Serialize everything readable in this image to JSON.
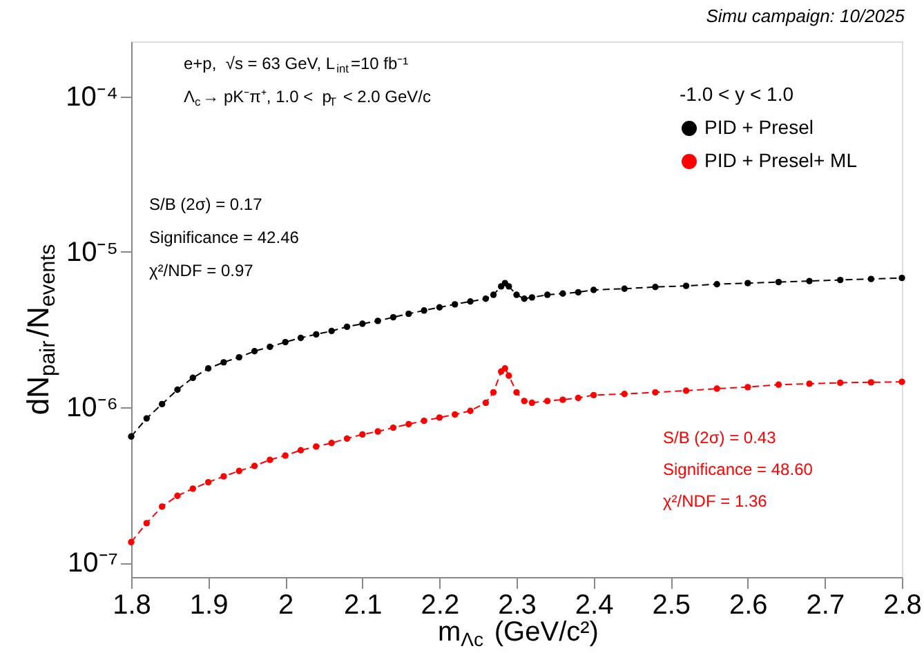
{
  "chart_data": {
    "type": "line",
    "xlabel": "m$_{Λc}$ (GeV/c²)",
    "ylabel": "dN$_{pair}$/N$_{events}$",
    "legend_title": "-1.0 < y < 1.0",
    "x": [
      1.8,
      1.82,
      1.84,
      1.86,
      1.88,
      1.9,
      1.92,
      1.94,
      1.96,
      1.98,
      2.0,
      2.02,
      2.04,
      2.06,
      2.08,
      2.1,
      2.12,
      2.14,
      2.16,
      2.18,
      2.2,
      2.22,
      2.24,
      2.26,
      2.27,
      2.28,
      2.285,
      2.29,
      2.3,
      2.31,
      2.32,
      2.34,
      2.36,
      2.38,
      2.4,
      2.44,
      2.48,
      2.52,
      2.56,
      2.6,
      2.64,
      2.68,
      2.72,
      2.76,
      2.8
    ],
    "series": [
      {
        "name": "PID + Presel",
        "color": "#000000",
        "values": [
          6.5e-07,
          8.5e-07,
          1.05e-06,
          1.3e-06,
          1.55e-06,
          1.78e-06,
          1.95e-06,
          2.1e-06,
          2.3e-06,
          2.45e-06,
          2.63e-06,
          2.8e-06,
          2.95e-06,
          3.1e-06,
          3.3e-06,
          3.45e-06,
          3.6e-06,
          3.8e-06,
          4e-06,
          4.2e-06,
          4.4e-06,
          4.6e-06,
          4.8e-06,
          5e-06,
          5.3e-06,
          6e-06,
          6.3e-06,
          6e-06,
          5.3e-06,
          5e-06,
          5.1e-06,
          5.3e-06,
          5.4e-06,
          5.5e-06,
          5.7e-06,
          5.8e-06,
          5.95e-06,
          6.05e-06,
          6.2e-06,
          6.3e-06,
          6.4e-06,
          6.5e-06,
          6.6e-06,
          6.7e-06,
          6.8e-06
        ]
      },
      {
        "name": "PID + Presel+ ML",
        "color": "#ff0000",
        "values": [
          1.36e-07,
          1.8e-07,
          2.3e-07,
          2.7e-07,
          3e-07,
          3.3e-07,
          3.6e-07,
          3.9e-07,
          4.2e-07,
          4.6e-07,
          4.9e-07,
          5.3e-07,
          5.6e-07,
          5.9e-07,
          6.3e-07,
          6.7e-07,
          7e-07,
          7.4e-07,
          7.8e-07,
          8.2e-07,
          8.6e-07,
          9e-07,
          9.5e-07,
          1.07e-06,
          1.25e-06,
          1.7e-06,
          1.78e-06,
          1.6e-06,
          1.25e-06,
          1.1e-06,
          1.07e-06,
          1.1e-06,
          1.12e-06,
          1.15e-06,
          1.2e-06,
          1.22e-06,
          1.25e-06,
          1.28e-06,
          1.32e-06,
          1.35e-06,
          1.4e-06,
          1.42e-06,
          1.44e-06,
          1.45e-06,
          1.46e-06
        ]
      }
    ],
    "xlim": [
      1.8,
      2.8
    ],
    "xticks": [
      1.8,
      1.9,
      2,
      2.1,
      2.2,
      2.3,
      2.4,
      2.5,
      2.6,
      2.7,
      2.8
    ],
    "ylim": [
      8.1e-08,
      0.000226
    ],
    "log": true,
    "yticks": [
      {
        "value": 1e-07,
        "label": "10⁻⁷"
      },
      {
        "value": 1e-06,
        "label": "10⁻⁶"
      },
      {
        "value": 1e-05,
        "label": "10⁻⁵"
      },
      {
        "value": 0.0001,
        "label": "10⁻⁴"
      }
    ],
    "marker": "circle",
    "line_style": "dashed",
    "legend": "top right",
    "grid": false,
    "annotations": [
      "Simu campaign: 10/2025",
      "e+p,  √s = 63 GeV, L$_{int}$=10 fb⁻¹",
      "Λ$_{c}$→ pK⁻π⁺, 1.0 <  p$_{T}$ < 2.0 GeV/c",
      "S/B (2σ) = 0.17",
      "Significance = 42.46",
      "χ²/NDF = 0.97",
      "S/B (2σ) = 0.43",
      "Significance = 48.60",
      "χ²/NDF = 1.36"
    ]
  }
}
